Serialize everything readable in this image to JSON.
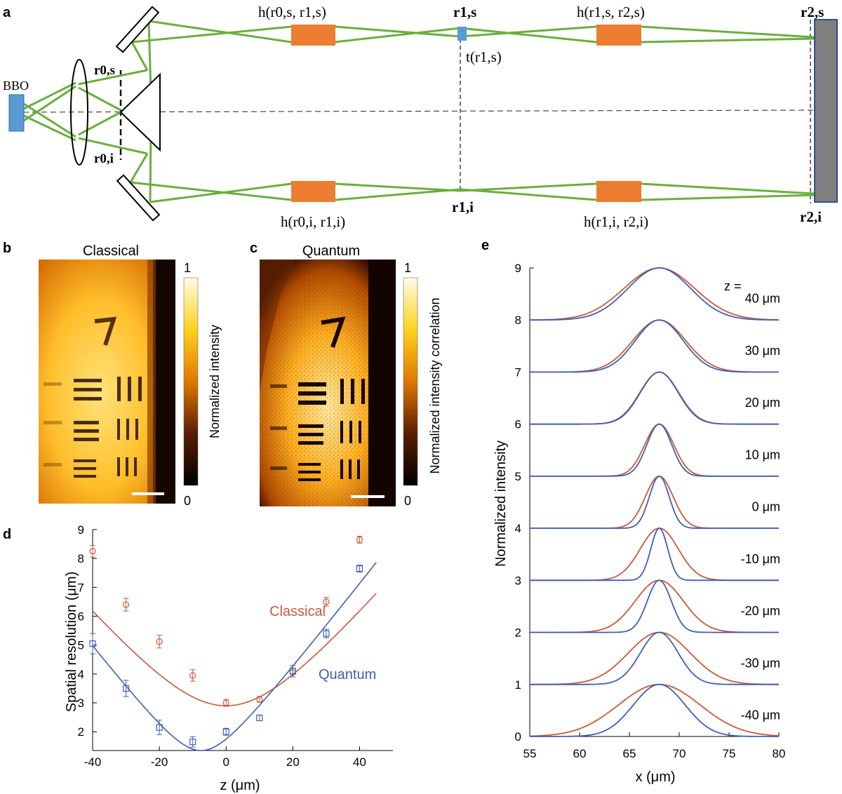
{
  "panel_labels": {
    "a": "a",
    "b": "b",
    "c": "c",
    "d": "d",
    "e": "e"
  },
  "panel_a": {
    "bbo_label": "BBO",
    "labels": {
      "h_0s_1s": "h(r0,s, r1,s)",
      "r_1s": "r1,s",
      "h_1s_2s": "h(r1,s, r2,s)",
      "r_2s": "r2,s",
      "r_0s": "r0,s",
      "t_1s": "t(r1,s)",
      "r_0i": "r0,i",
      "h_0i_1i": "h(r0,i, r1,i)",
      "r_1i": "r1,i",
      "h_1i_2i": "h(r1,i, r2,i)",
      "r_2i": "r2,i"
    },
    "colors": {
      "beam": "#6aaf3d",
      "filter": "#ed7d31",
      "crystal": "#5b9bd5",
      "camera": "#7f7f7f",
      "camera_border": "#2f4f8f"
    }
  },
  "panel_b": {
    "title": "Classical",
    "colorbar_label": "Normalized intensity",
    "colorbar_max": "1",
    "colorbar_min": "0"
  },
  "panel_c": {
    "title": "Quantum",
    "colorbar_label": "Normalized intensity correlation",
    "colorbar_max": "1",
    "colorbar_min": "0"
  },
  "chart_data": [
    {
      "panel": "d",
      "type": "scatter",
      "xlabel": "z (μm)",
      "ylabel": "Spatial resolution (μm)",
      "xlim": [
        -40,
        50
      ],
      "ylim": [
        1.35,
        9
      ],
      "xticks": [
        -40,
        -20,
        0,
        20,
        40
      ],
      "xtick_labels": [
        "-40",
        "-20",
        "0",
        "20",
        "40"
      ],
      "yticks": [
        2,
        3,
        4,
        5,
        6,
        7,
        8,
        9
      ],
      "ytick_labels": [
        "2",
        "3",
        "4",
        "5",
        "6",
        "7",
        "8",
        "9"
      ],
      "series": [
        {
          "name": "Classical",
          "color": "#c65a3a",
          "marker": "circle",
          "x": [
            -40,
            -30,
            -20,
            -10,
            0,
            10,
            20,
            30,
            40
          ],
          "y": [
            8.25,
            6.4,
            5.12,
            3.95,
            3.0,
            3.12,
            4.05,
            6.5,
            8.65
          ],
          "err": [
            0.2,
            0.22,
            0.22,
            0.2,
            0.12,
            0.1,
            0.15,
            0.15,
            0.12
          ],
          "fit": {
            "z0": 0,
            "w0": 2.9,
            "slope": 0.1365,
            "x_range": [
              -40,
              45
            ]
          }
        },
        {
          "name": "Quantum",
          "color": "#3f5fb5",
          "marker": "square",
          "x": [
            -40,
            -30,
            -20,
            -10,
            0,
            10,
            20,
            30,
            40
          ],
          "y": [
            5.05,
            3.5,
            2.15,
            1.65,
            2.0,
            2.48,
            4.1,
            5.4,
            7.65
          ],
          "err": [
            0.35,
            0.28,
            0.25,
            0.18,
            0.12,
            0.1,
            0.2,
            0.15,
            0.12
          ],
          "fit": {
            "z0": -7.5,
            "w0": 1.35,
            "slope": 0.1475,
            "x_range": [
              -40,
              45
            ]
          }
        }
      ],
      "annotations": [
        "Classical",
        "Quantum"
      ]
    },
    {
      "panel": "e",
      "type": "line",
      "xlabel": "x (μm)",
      "ylabel": "Normalized intensity",
      "xlim": [
        55,
        80
      ],
      "ylim": [
        0,
        9
      ],
      "xticks": [
        55,
        60,
        65,
        70,
        75,
        80
      ],
      "xtick_labels": [
        "55",
        "60",
        "65",
        "70",
        "75",
        "80"
      ],
      "yticks": [
        0,
        1,
        2,
        3,
        4,
        5,
        6,
        7,
        8,
        9
      ],
      "ytick_labels": [
        "0",
        "1",
        "2",
        "3",
        "4",
        "5",
        "6",
        "7",
        "8",
        "9"
      ],
      "center": 68,
      "z_header": "z =",
      "profiles": [
        {
          "offset": 0,
          "z_label": "-40 μm",
          "sigma_classical": 4.1,
          "sigma_quantum": 2.6
        },
        {
          "offset": 1,
          "z_label": "-30 μm",
          "sigma_classical": 3.1,
          "sigma_quantum": 1.9
        },
        {
          "offset": 2,
          "z_label": "-20 μm",
          "sigma_classical": 2.4,
          "sigma_quantum": 1.2
        },
        {
          "offset": 3,
          "z_label": "-10 μm",
          "sigma_classical": 1.9,
          "sigma_quantum": 0.85
        },
        {
          "offset": 4,
          "z_label": "0 μm",
          "sigma_classical": 1.4,
          "sigma_quantum": 1.0
        },
        {
          "offset": 5,
          "z_label": "10 μm",
          "sigma_classical": 1.45,
          "sigma_quantum": 1.25
        },
        {
          "offset": 6,
          "z_label": "20 μm",
          "sigma_classical": 1.95,
          "sigma_quantum": 1.9
        },
        {
          "offset": 7,
          "z_label": "30 μm",
          "sigma_classical": 2.65,
          "sigma_quantum": 2.4
        },
        {
          "offset": 8,
          "z_label": "40 μm",
          "sigma_classical": 3.55,
          "sigma_quantum": 3.15
        }
      ],
      "series": [
        {
          "name": "Classical",
          "color": "#c65a3a"
        },
        {
          "name": "Quantum",
          "color": "#3f5fb5"
        }
      ]
    }
  ]
}
